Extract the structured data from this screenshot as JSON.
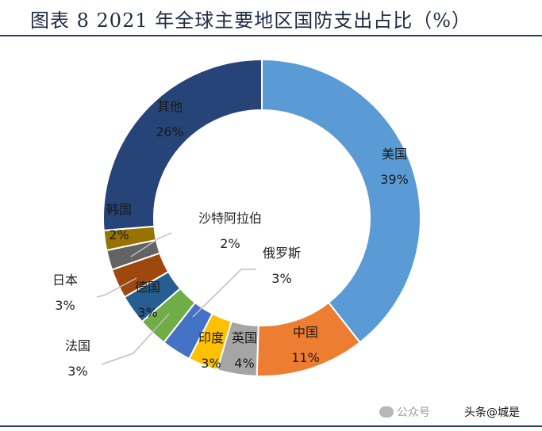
{
  "title": "图表 8 2021 年全球主要地区国防支出占比（%）",
  "watermark": {
    "left_text": "公众号",
    "right_text": "头条@城是"
  },
  "chart_data": {
    "type": "pie",
    "donut": true,
    "title": "图表 8 2021 年全球主要地区国防支出占比（%）",
    "unit": "%",
    "slices": [
      {
        "name": "美国",
        "value": 39,
        "label": "39%",
        "color": "#5B9BD5"
      },
      {
        "name": "中国",
        "value": 11,
        "label": "11%",
        "color": "#ED7D31"
      },
      {
        "name": "英国",
        "value": 4,
        "label": "4%",
        "color": "#A5A5A5"
      },
      {
        "name": "印度",
        "value": 3,
        "label": "3%",
        "color": "#FFC000"
      },
      {
        "name": "俄罗斯",
        "value": 3,
        "label": "3%",
        "color": "#4472C4"
      },
      {
        "name": "法国",
        "value": 3,
        "label": "3%",
        "color": "#70AD47"
      },
      {
        "name": "德国",
        "value": 3,
        "label": "3%",
        "color": "#255E91"
      },
      {
        "name": "日本",
        "value": 3,
        "label": "3%",
        "color": "#9E480E"
      },
      {
        "name": "沙特阿拉伯",
        "value": 2,
        "label": "2%",
        "color": "#636363"
      },
      {
        "name": "韩国",
        "value": 2,
        "label": "2%",
        "color": "#997300"
      },
      {
        "name": "其他",
        "value": 26,
        "label": "26%",
        "color": "#264478"
      }
    ],
    "legend": "none"
  }
}
